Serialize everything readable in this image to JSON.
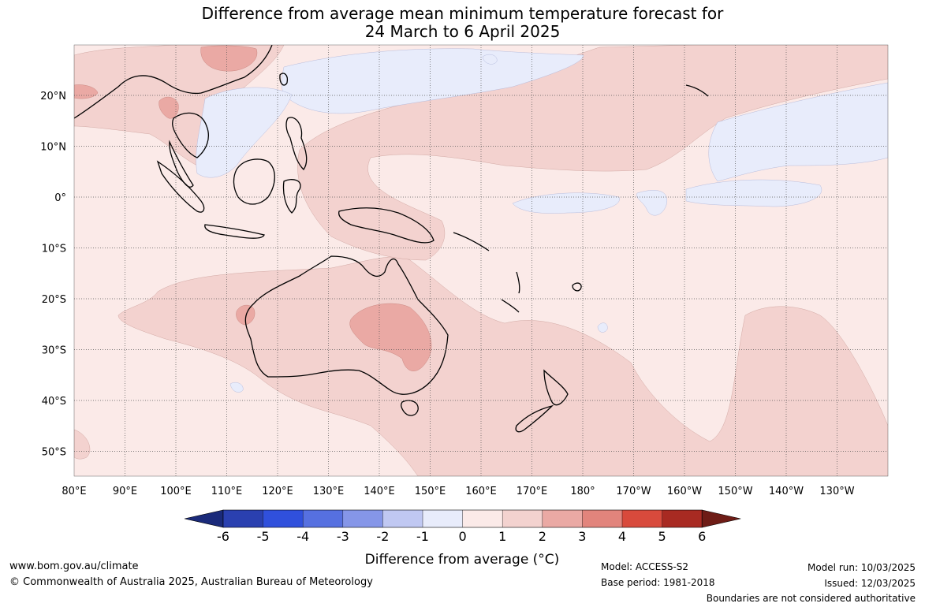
{
  "title": {
    "line1": "Difference from average mean minimum temperature forecast for",
    "line2": "24 March to 6 April 2025"
  },
  "map": {
    "lat_labels": [
      "20°N",
      "10°N",
      "0°",
      "10°S",
      "20°S",
      "30°S",
      "40°S",
      "50°S"
    ],
    "lon_labels": [
      "80°E",
      "90°E",
      "100°E",
      "110°E",
      "120°E",
      "130°E",
      "140°E",
      "150°E",
      "160°E",
      "170°E",
      "180°",
      "170°W",
      "160°W",
      "150°W",
      "140°W",
      "130°W"
    ],
    "background_color": "#fbeae8"
  },
  "colorbar": {
    "ticks": [
      "-6",
      "-5",
      "-4",
      "-3",
      "-2",
      "-1",
      "0",
      "1",
      "2",
      "3",
      "4",
      "5",
      "6"
    ],
    "colors": [
      "#1a2a7a",
      "#2a40b0",
      "#3050dc",
      "#5670e0",
      "#8596e8",
      "#c0c8f2",
      "#e8ecfb",
      "#fbeae8",
      "#f3d2cf",
      "#eaa9a4",
      "#e2847c",
      "#d84a3c",
      "#a82a22",
      "#6e1c16"
    ],
    "label": "Difference from average (°C)"
  },
  "footer": {
    "website": "www.bom.gov.au/climate",
    "copyright": "© Commonwealth of Australia 2025, Australian Bureau of Meteorology",
    "model": "Model: ACCESS-S2",
    "base_period": "Base period: 1981-2018",
    "model_run": "Model run: 10/03/2025",
    "issued": "Issued: 12/03/2025",
    "disclaimer": "Boundaries are not considered authoritative"
  }
}
